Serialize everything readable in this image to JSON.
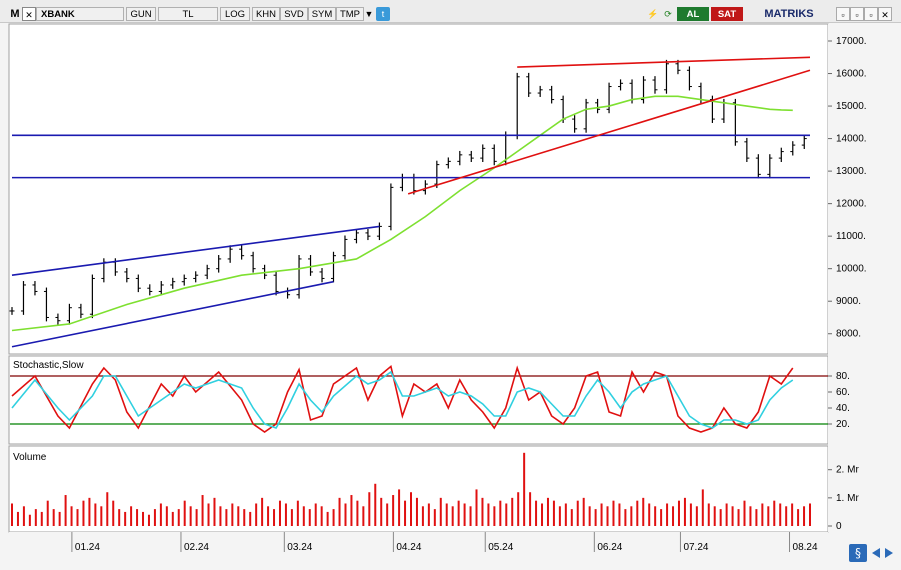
{
  "toolbar": {
    "menu_label": "M",
    "symbol": "XBANK",
    "period": "GUN",
    "currency": "TL",
    "log": "LOG",
    "khn": "KHN",
    "svd": "SVD",
    "sym": "SYM",
    "tmp": "TMP",
    "buy_label": "AL",
    "sell_label": "SAT",
    "brand": "MATRIKS"
  },
  "panels": {
    "stochastic_title": "Stochastic,Slow",
    "volume_title": "Volume"
  },
  "colors": {
    "price_bars": "#000000",
    "ma_line": "#7ee030",
    "upper_channel": "#1a1ab0",
    "support_line": "#1a1ab0",
    "trend_lines": "#e01010",
    "stoch_k": "#e01010",
    "stoch_d": "#30d0e0",
    "stoch_upper": "#800000",
    "stoch_lower": "#008000",
    "volume": "#e01010"
  },
  "chart_data": [
    {
      "type": "line",
      "panel": "price",
      "x_ticks": [
        "01.24",
        "02.24",
        "03.24",
        "04.24",
        "05.24",
        "06.24",
        "07.24",
        "08.24"
      ],
      "y_ticks": [
        8000,
        9000,
        10000,
        11000,
        12000,
        13000,
        14000,
        15000,
        16000,
        17000
      ],
      "ylim": [
        7500,
        17400
      ],
      "series": [
        {
          "role": "close",
          "style": "ohlc-bars",
          "points": [
            [
              0,
              8700
            ],
            [
              2,
              9500
            ],
            [
              4,
              9300
            ],
            [
              6,
              8500
            ],
            [
              8,
              8400
            ],
            [
              10,
              8800
            ],
            [
              12,
              8600
            ],
            [
              14,
              9700
            ],
            [
              16,
              10200
            ],
            [
              18,
              9900
            ],
            [
              20,
              9700
            ],
            [
              22,
              9400
            ],
            [
              24,
              9300
            ],
            [
              26,
              9500
            ],
            [
              28,
              9600
            ],
            [
              30,
              9700
            ],
            [
              32,
              9800
            ],
            [
              34,
              10000
            ],
            [
              36,
              10300
            ],
            [
              38,
              10600
            ],
            [
              40,
              10400
            ],
            [
              42,
              10000
            ],
            [
              44,
              9800
            ],
            [
              46,
              9300
            ],
            [
              48,
              9200
            ],
            [
              50,
              10300
            ],
            [
              52,
              9900
            ],
            [
              54,
              9700
            ],
            [
              56,
              10400
            ],
            [
              58,
              10900
            ],
            [
              60,
              11100
            ],
            [
              62,
              11000
            ],
            [
              64,
              11300
            ],
            [
              66,
              12500
            ],
            [
              68,
              12800
            ],
            [
              70,
              12400
            ],
            [
              72,
              12600
            ],
            [
              74,
              13200
            ],
            [
              76,
              13300
            ],
            [
              78,
              13500
            ],
            [
              80,
              13400
            ],
            [
              82,
              13700
            ],
            [
              84,
              13300
            ],
            [
              86,
              14100
            ],
            [
              88,
              15900
            ],
            [
              90,
              15400
            ],
            [
              92,
              15500
            ],
            [
              94,
              15200
            ],
            [
              96,
              14600
            ],
            [
              98,
              14300
            ],
            [
              100,
              15100
            ],
            [
              102,
              14900
            ],
            [
              104,
              15600
            ],
            [
              106,
              15700
            ],
            [
              108,
              15200
            ],
            [
              110,
              15800
            ],
            [
              112,
              15500
            ],
            [
              114,
              16300
            ],
            [
              116,
              16100
            ],
            [
              118,
              15600
            ],
            [
              120,
              15200
            ],
            [
              122,
              14600
            ],
            [
              124,
              15100
            ],
            [
              126,
              13900
            ],
            [
              128,
              13400
            ],
            [
              130,
              12900
            ],
            [
              132,
              13400
            ],
            [
              134,
              13600
            ],
            [
              136,
              13800
            ],
            [
              138,
              14000
            ]
          ]
        },
        {
          "role": "moving-average",
          "points": [
            [
              0,
              8100
            ],
            [
              10,
              8300
            ],
            [
              20,
              8900
            ],
            [
              30,
              9400
            ],
            [
              40,
              9800
            ],
            [
              50,
              10000
            ],
            [
              60,
              10300
            ],
            [
              66,
              10900
            ],
            [
              72,
              11600
            ],
            [
              78,
              12400
            ],
            [
              84,
              13100
            ],
            [
              88,
              13600
            ],
            [
              92,
              14100
            ],
            [
              96,
              14600
            ],
            [
              100,
              14900
            ],
            [
              104,
              15000
            ],
            [
              108,
              15200
            ],
            [
              112,
              15300
            ],
            [
              116,
              15300
            ],
            [
              120,
              15200
            ],
            [
              124,
              15100
            ],
            [
              128,
              15000
            ],
            [
              132,
              14900
            ],
            [
              134,
              14880
            ],
            [
              136,
              14870
            ]
          ]
        },
        {
          "role": "channel-upper",
          "points": [
            [
              0,
              9800
            ],
            [
              64,
              11300
            ]
          ]
        },
        {
          "role": "channel-lower",
          "points": [
            [
              0,
              7600
            ],
            [
              56,
              9600
            ]
          ]
        },
        {
          "role": "resistance",
          "points": [
            [
              0,
              14100
            ],
            [
              139,
              14100
            ]
          ]
        },
        {
          "role": "support",
          "points": [
            [
              0,
              12800
            ],
            [
              139,
              12800
            ]
          ]
        },
        {
          "role": "uptrend",
          "points": [
            [
              69,
              12300
            ],
            [
              139,
              16100
            ]
          ]
        },
        {
          "role": "top-line",
          "points": [
            [
              88,
              16200
            ],
            [
              139,
              16500
            ]
          ]
        }
      ]
    },
    {
      "type": "line",
      "panel": "stochastic",
      "title": "Stochastic,Slow",
      "y_ticks": [
        20,
        40,
        60,
        80
      ],
      "ylim": [
        0,
        100
      ],
      "levels": [
        20,
        80
      ],
      "series": [
        {
          "role": "K",
          "points": [
            [
              0,
              55
            ],
            [
              4,
              80
            ],
            [
              8,
              30
            ],
            [
              10,
              15
            ],
            [
              14,
              70
            ],
            [
              16,
              90
            ],
            [
              18,
              75
            ],
            [
              20,
              35
            ],
            [
              22,
              15
            ],
            [
              26,
              70
            ],
            [
              28,
              55
            ],
            [
              30,
              80
            ],
            [
              32,
              60
            ],
            [
              36,
              85
            ],
            [
              40,
              50
            ],
            [
              42,
              20
            ],
            [
              44,
              10
            ],
            [
              46,
              20
            ],
            [
              48,
              60
            ],
            [
              50,
              88
            ],
            [
              52,
              25
            ],
            [
              54,
              30
            ],
            [
              56,
              70
            ],
            [
              60,
              90
            ],
            [
              62,
              50
            ],
            [
              64,
              80
            ],
            [
              66,
              92
            ],
            [
              68,
              30
            ],
            [
              70,
              70
            ],
            [
              72,
              60
            ],
            [
              74,
              70
            ],
            [
              76,
              40
            ],
            [
              78,
              75
            ],
            [
              80,
              50
            ],
            [
              82,
              35
            ],
            [
              84,
              15
            ],
            [
              86,
              40
            ],
            [
              88,
              90
            ],
            [
              90,
              50
            ],
            [
              92,
              60
            ],
            [
              94,
              30
            ],
            [
              96,
              20
            ],
            [
              98,
              40
            ],
            [
              100,
              80
            ],
            [
              102,
              85
            ],
            [
              104,
              35
            ],
            [
              106,
              30
            ],
            [
              108,
              85
            ],
            [
              110,
              60
            ],
            [
              112,
              85
            ],
            [
              114,
              80
            ],
            [
              116,
              30
            ],
            [
              118,
              15
            ],
            [
              120,
              10
            ],
            [
              122,
              15
            ],
            [
              124,
              40
            ],
            [
              126,
              20
            ],
            [
              128,
              15
            ],
            [
              130,
              35
            ],
            [
              132,
              80
            ],
            [
              134,
              70
            ],
            [
              136,
              90
            ]
          ]
        },
        {
          "role": "D",
          "points": [
            [
              0,
              40
            ],
            [
              4,
              75
            ],
            [
              8,
              40
            ],
            [
              10,
              25
            ],
            [
              14,
              55
            ],
            [
              16,
              80
            ],
            [
              18,
              80
            ],
            [
              20,
              55
            ],
            [
              22,
              30
            ],
            [
              26,
              50
            ],
            [
              28,
              60
            ],
            [
              30,
              70
            ],
            [
              32,
              65
            ],
            [
              36,
              75
            ],
            [
              40,
              65
            ],
            [
              42,
              40
            ],
            [
              44,
              20
            ],
            [
              46,
              15
            ],
            [
              48,
              40
            ],
            [
              50,
              70
            ],
            [
              52,
              50
            ],
            [
              54,
              35
            ],
            [
              56,
              55
            ],
            [
              60,
              80
            ],
            [
              62,
              70
            ],
            [
              64,
              75
            ],
            [
              66,
              85
            ],
            [
              68,
              55
            ],
            [
              70,
              55
            ],
            [
              72,
              60
            ],
            [
              74,
              65
            ],
            [
              76,
              55
            ],
            [
              78,
              60
            ],
            [
              80,
              55
            ],
            [
              82,
              45
            ],
            [
              84,
              30
            ],
            [
              86,
              30
            ],
            [
              88,
              60
            ],
            [
              90,
              65
            ],
            [
              92,
              60
            ],
            [
              94,
              45
            ],
            [
              96,
              30
            ],
            [
              98,
              30
            ],
            [
              100,
              55
            ],
            [
              102,
              75
            ],
            [
              104,
              60
            ],
            [
              106,
              40
            ],
            [
              108,
              60
            ],
            [
              110,
              70
            ],
            [
              112,
              75
            ],
            [
              114,
              80
            ],
            [
              116,
              55
            ],
            [
              118,
              30
            ],
            [
              120,
              20
            ],
            [
              122,
              15
            ],
            [
              124,
              25
            ],
            [
              126,
              25
            ],
            [
              128,
              20
            ],
            [
              130,
              25
            ],
            [
              132,
              50
            ],
            [
              134,
              65
            ],
            [
              136,
              75
            ]
          ]
        }
      ]
    },
    {
      "type": "bar",
      "panel": "volume",
      "title": "Volume",
      "y_ticks": [
        "0",
        "1. Mr",
        "2. Mr"
      ],
      "ylim": [
        0,
        2.7
      ],
      "values": [
        0.8,
        0.5,
        0.7,
        0.4,
        0.6,
        0.5,
        0.9,
        0.6,
        0.5,
        1.1,
        0.7,
        0.6,
        0.9,
        1.0,
        0.8,
        0.7,
        1.2,
        0.9,
        0.6,
        0.5,
        0.7,
        0.6,
        0.5,
        0.4,
        0.6,
        0.8,
        0.7,
        0.5,
        0.6,
        0.9,
        0.7,
        0.6,
        1.1,
        0.8,
        1.0,
        0.7,
        0.6,
        0.8,
        0.7,
        0.6,
        0.5,
        0.8,
        1.0,
        0.7,
        0.6,
        0.9,
        0.8,
        0.6,
        0.9,
        0.7,
        0.6,
        0.8,
        0.7,
        0.5,
        0.6,
        1.0,
        0.8,
        1.1,
        0.9,
        0.7,
        1.2,
        1.5,
        1.0,
        0.8,
        1.1,
        1.3,
        0.9,
        1.2,
        1.0,
        0.7,
        0.8,
        0.6,
        1.0,
        0.8,
        0.7,
        0.9,
        0.8,
        0.7,
        1.3,
        1.0,
        0.8,
        0.7,
        0.9,
        0.8,
        1.0,
        1.2,
        2.6,
        1.2,
        0.9,
        0.8,
        1.0,
        0.9,
        0.7,
        0.8,
        0.6,
        0.9,
        1.0,
        0.7,
        0.6,
        0.8,
        0.7,
        0.9,
        0.8,
        0.6,
        0.7,
        0.9,
        1.0,
        0.8,
        0.7,
        0.6,
        0.8,
        0.7,
        0.9,
        1.0,
        0.8,
        0.7,
        1.3,
        0.8,
        0.7,
        0.6,
        0.8,
        0.7,
        0.6,
        0.9,
        0.7,
        0.6,
        0.8,
        0.7,
        0.9,
        0.8,
        0.7,
        0.8,
        0.6,
        0.7,
        0.8
      ]
    }
  ]
}
